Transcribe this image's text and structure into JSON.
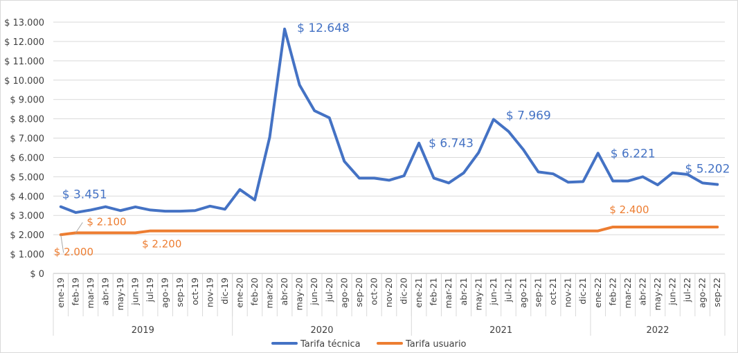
{
  "chart_data": {
    "type": "line",
    "ylim": [
      0,
      13000
    ],
    "ytick_step": 1000,
    "y_tick_labels": [
      "$ 0",
      "$ 1.000",
      "$ 2.000",
      "$ 3.000",
      "$ 4.000",
      "$ 5.000",
      "$ 6.000",
      "$ 7.000",
      "$ 8.000",
      "$ 9.000",
      "$ 10.000",
      "$ 11.000",
      "$ 12.000",
      "$ 13.000"
    ],
    "x": [
      "ene-19",
      "feb-19",
      "mar-19",
      "abr-19",
      "may-19",
      "jun-19",
      "jul-19",
      "ago-19",
      "sep-19",
      "oct-19",
      "nov-19",
      "dic-19",
      "ene-20",
      "feb-20",
      "mar-20",
      "abr-20",
      "may-20",
      "jun-20",
      "jul-20",
      "ago-20",
      "sep-20",
      "oct-20",
      "nov-20",
      "dic-20",
      "ene-21",
      "feb-21",
      "mar-21",
      "abr-21",
      "may-21",
      "jun-21",
      "jul-21",
      "ago-21",
      "sep-21",
      "oct-21",
      "nov-21",
      "dic-21",
      "ene-22",
      "feb-22",
      "mar-22",
      "abr-22",
      "may-22",
      "jun-22",
      "jul-22",
      "ago-22",
      "sep-22"
    ],
    "years": [
      {
        "label": "2019",
        "start": 0,
        "end": 11
      },
      {
        "label": "2020",
        "start": 12,
        "end": 23
      },
      {
        "label": "2021",
        "start": 24,
        "end": 35
      },
      {
        "label": "2022",
        "start": 36,
        "end": 44
      }
    ],
    "grid": true,
    "legend_position": "bottom",
    "series": [
      {
        "name": "Tarifa técnica",
        "color": "#4472C4",
        "values": [
          3451,
          3150,
          3280,
          3450,
          3250,
          3440,
          3280,
          3220,
          3220,
          3250,
          3480,
          3320,
          4340,
          3800,
          7050,
          12648,
          9750,
          8420,
          8050,
          5800,
          4930,
          4930,
          4820,
          5050,
          6743,
          4930,
          4680,
          5200,
          6250,
          7969,
          7350,
          6400,
          5250,
          5150,
          4720,
          4750,
          6221,
          4780,
          4780,
          5000,
          4580,
          5202,
          5120,
          4680,
          4600
        ]
      },
      {
        "name": "Tarifa usuario",
        "color": "#ED7D31",
        "values": [
          2000,
          2100,
          2100,
          2100,
          2100,
          2100,
          2200,
          2200,
          2200,
          2200,
          2200,
          2200,
          2200,
          2200,
          2200,
          2200,
          2200,
          2200,
          2200,
          2200,
          2200,
          2200,
          2200,
          2200,
          2200,
          2200,
          2200,
          2200,
          2200,
          2200,
          2200,
          2200,
          2200,
          2200,
          2200,
          2200,
          2200,
          2400,
          2400,
          2400,
          2400,
          2400,
          2400,
          2400,
          2400
        ]
      }
    ],
    "data_labels": [
      {
        "series": 0,
        "index": 0,
        "text": "$ 3.451"
      },
      {
        "series": 0,
        "index": 15,
        "text": "$ 12.648"
      },
      {
        "series": 0,
        "index": 24,
        "text": "$ 6.743"
      },
      {
        "series": 0,
        "index": 29,
        "text": "$ 7.969"
      },
      {
        "series": 0,
        "index": 36,
        "text": "$ 6.221"
      },
      {
        "series": 0,
        "index": 41,
        "text": "$ 5.202"
      },
      {
        "series": 1,
        "index": 0,
        "text": "$ 2.000"
      },
      {
        "series": 1,
        "index": 1,
        "text": "$ 2.100"
      },
      {
        "series": 1,
        "index": 6,
        "text": "$ 2.200"
      },
      {
        "series": 1,
        "index": 37,
        "text": "$ 2.400"
      }
    ]
  }
}
